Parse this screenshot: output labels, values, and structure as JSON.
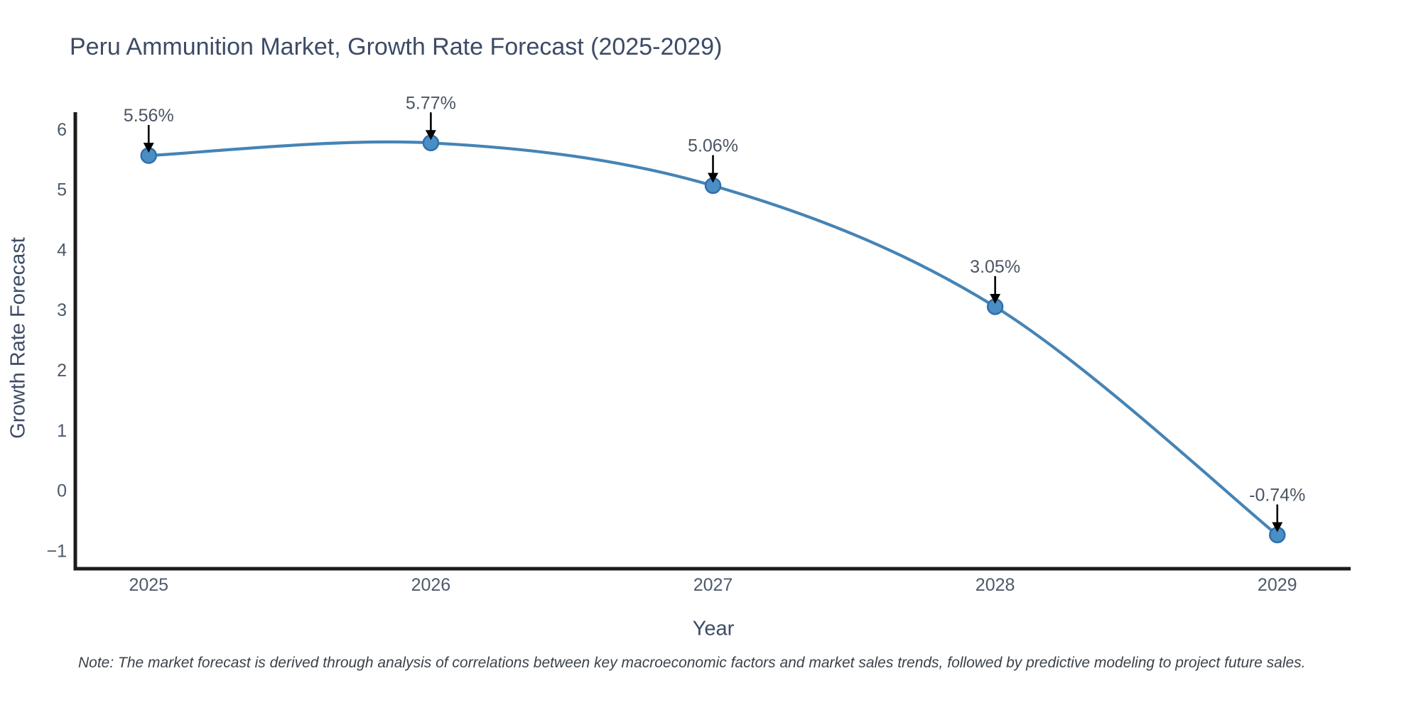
{
  "chart_data": {
    "type": "line",
    "line_shape": "spline",
    "markers": true,
    "title": "Peru Ammunition Market, Growth Rate Forecast (2025-2029)",
    "xlabel": "Year",
    "ylabel": "Growth Rate Forecast",
    "x": [
      2025,
      2026,
      2027,
      2028,
      2029
    ],
    "y": [
      5.56,
      5.77,
      5.06,
      3.05,
      -0.74
    ],
    "point_labels": [
      "5.56%",
      "5.77%",
      "5.06%",
      "3.05%",
      "-0.74%"
    ],
    "annotation_arrows": true,
    "xtick_values": [
      2025,
      2026,
      2027,
      2028,
      2029
    ],
    "xtick_labels": [
      "2025",
      "2026",
      "2027",
      "2028",
      "2029"
    ],
    "ytick_values": [
      6,
      5,
      4,
      3,
      2,
      1,
      0,
      -1
    ],
    "ytick_labels": [
      "6",
      "5",
      "4",
      "3",
      "2",
      "1",
      "0",
      "−1"
    ],
    "xlim": [
      2024.74,
      2029.26
    ],
    "ylim": [
      -1.3,
      6.28
    ],
    "grid": false,
    "legend": false,
    "note": "Note: The market forecast is derived through analysis of correlations between key macroeconomic factors and market sales trends, followed by predictive modeling to project future sales.",
    "colors": {
      "line": "#4584b6",
      "marker_fill": "#4a8ec6",
      "marker_edge": "#316fa9",
      "axis": "#1c1c1c",
      "title_text": "#3d4b66",
      "tick_text": "#4d5a6a",
      "annotation_text": "#4b5563",
      "arrow": "#000000",
      "note_text": "#3b4248",
      "background": "#ffffff"
    }
  }
}
